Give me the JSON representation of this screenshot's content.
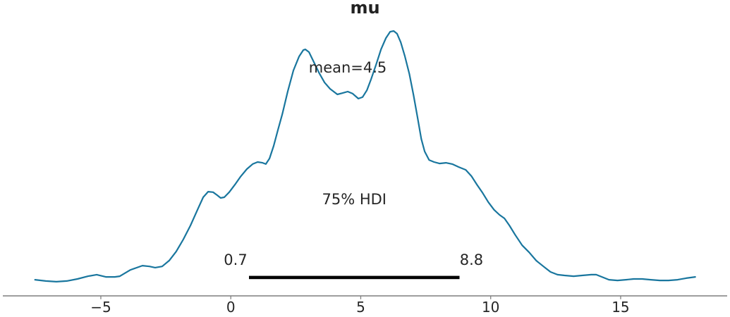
{
  "chart_data": {
    "type": "line",
    "title": "mu",
    "xlabel": "",
    "ylabel": "",
    "grid": false,
    "legend": "none",
    "x_axis": {
      "tick_values": [
        -5,
        0,
        5,
        10,
        15
      ],
      "tick_labels": [
        "−5",
        "0",
        "5",
        "10",
        "15"
      ],
      "range": [
        -8.8,
        19.1
      ]
    },
    "mean": 4.5,
    "mean_label": "mean=4.5",
    "hdi": {
      "prob": "75%",
      "label": "75% HDI",
      "lower": 0.7,
      "upper": 8.8,
      "lower_label": "0.7",
      "upper_label": "8.8"
    },
    "colors": {
      "curve": "#19769e",
      "hdi_bar": "#000000",
      "axis": "#7f7f7f",
      "text": "#262626"
    },
    "curve": {
      "x": [
        -7.53,
        -7.12,
        -6.71,
        -6.31,
        -5.9,
        -5.49,
        -5.16,
        -4.81,
        -4.46,
        -4.27,
        -3.86,
        -3.4,
        -3.13,
        -2.91,
        -2.64,
        -2.37,
        -2.1,
        -1.83,
        -1.55,
        -1.28,
        -1.06,
        -0.87,
        -0.68,
        -0.52,
        -0.39,
        -0.25,
        -0.06,
        0.16,
        0.37,
        0.62,
        0.84,
        1.03,
        1.22,
        1.35,
        1.49,
        1.65,
        1.81,
        1.98,
        2.19,
        2.41,
        2.63,
        2.79,
        2.87,
        3.01,
        3.17,
        3.39,
        3.61,
        3.82,
        4.1,
        4.29,
        4.5,
        4.69,
        4.91,
        5.07,
        5.24,
        5.4,
        5.59,
        5.78,
        5.97,
        6.13,
        6.27,
        6.4,
        6.54,
        6.7,
        6.87,
        7.03,
        7.19,
        7.33,
        7.46,
        7.63,
        7.82,
        8.03,
        8.28,
        8.52,
        8.77,
        9.04,
        9.26,
        9.47,
        9.69,
        9.91,
        10.13,
        10.34,
        10.53,
        10.72,
        10.94,
        11.21,
        11.48,
        11.75,
        12.03,
        12.3,
        12.57,
        12.84,
        13.19,
        13.52,
        13.87,
        14.06,
        14.33,
        14.55,
        14.88,
        15.2,
        15.5,
        15.83,
        16.16,
        16.51,
        16.84,
        17.19,
        17.52,
        17.87
      ],
      "density_normalized": [
        0.011,
        0.006,
        0.003,
        0.006,
        0.014,
        0.025,
        0.031,
        0.022,
        0.022,
        0.025,
        0.05,
        0.067,
        0.064,
        0.059,
        0.064,
        0.087,
        0.123,
        0.171,
        0.227,
        0.289,
        0.339,
        0.361,
        0.359,
        0.347,
        0.336,
        0.339,
        0.359,
        0.389,
        0.42,
        0.451,
        0.471,
        0.479,
        0.476,
        0.471,
        0.493,
        0.543,
        0.605,
        0.669,
        0.759,
        0.843,
        0.899,
        0.924,
        0.927,
        0.916,
        0.882,
        0.835,
        0.795,
        0.77,
        0.748,
        0.753,
        0.759,
        0.751,
        0.731,
        0.737,
        0.765,
        0.809,
        0.866,
        0.927,
        0.972,
        0.997,
        1.0,
        0.989,
        0.955,
        0.899,
        0.829,
        0.745,
        0.653,
        0.571,
        0.521,
        0.487,
        0.479,
        0.473,
        0.476,
        0.471,
        0.459,
        0.448,
        0.423,
        0.389,
        0.356,
        0.319,
        0.289,
        0.269,
        0.255,
        0.227,
        0.19,
        0.148,
        0.12,
        0.087,
        0.064,
        0.042,
        0.031,
        0.028,
        0.025,
        0.028,
        0.031,
        0.031,
        0.02,
        0.011,
        0.008,
        0.011,
        0.014,
        0.014,
        0.011,
        0.008,
        0.008,
        0.011,
        0.017,
        0.022
      ]
    }
  }
}
